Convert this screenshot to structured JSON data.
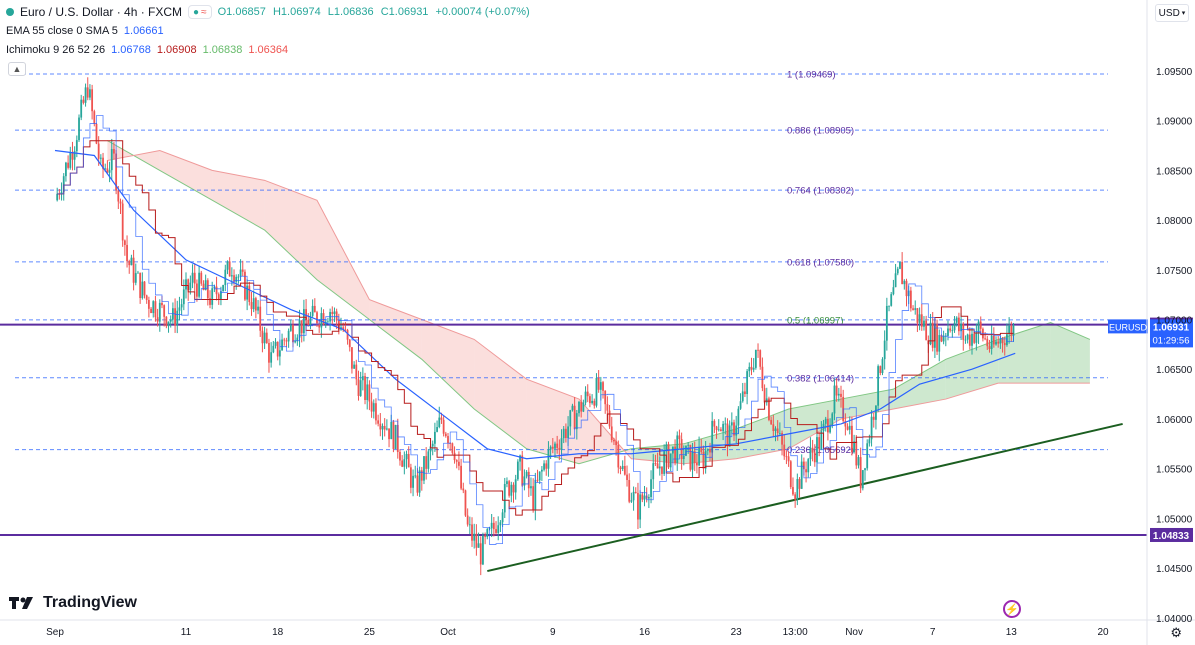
{
  "header": {
    "symbol": "Euro / U.S. Dollar · 4h · FXCM",
    "ohlc": {
      "o": "O1.06857",
      "h": "H1.06974",
      "l": "L1.06836",
      "c": "C1.06931",
      "change": "+0.00074 (+0.07%)"
    },
    "ema_label": "EMA 55 close 0 SMA 5",
    "ema_value": "1.06661",
    "ichimoku_label": "Ichimoku 9 26 52 26",
    "ichimoku_values": [
      "1.06768",
      "1.06908",
      "1.06838",
      "1.06364"
    ]
  },
  "currency_button": "USD",
  "brand": "TradingView",
  "chart_data": {
    "type": "candlestick",
    "title": "Euro / U.S. Dollar · 4h · FXCM",
    "ylim": [
      1.04,
      1.099
    ],
    "y_ticks": [
      {
        "value": 1.04,
        "label": "1.04000"
      },
      {
        "value": 1.045,
        "label": "1.04500"
      },
      {
        "value": 1.05,
        "label": "1.05000"
      },
      {
        "value": 1.055,
        "label": "1.05500"
      },
      {
        "value": 1.06,
        "label": "1.06000"
      },
      {
        "value": 1.065,
        "label": "1.06500"
      },
      {
        "value": 1.07,
        "label": "1.07000"
      },
      {
        "value": 1.075,
        "label": "1.07500"
      },
      {
        "value": 1.08,
        "label": "1.08000"
      },
      {
        "value": 1.085,
        "label": "1.08500"
      },
      {
        "value": 1.09,
        "label": "1.09000"
      },
      {
        "value": 1.095,
        "label": "1.09500"
      }
    ],
    "x_ticks": [
      {
        "label": "Sep",
        "day": 0
      },
      {
        "label": "11",
        "day": 10
      },
      {
        "label": "18",
        "day": 17
      },
      {
        "label": "25",
        "day": 24
      },
      {
        "label": "Oct",
        "day": 30
      },
      {
        "label": "9",
        "day": 38
      },
      {
        "label": "16",
        "day": 45
      },
      {
        "label": "23",
        "day": 52
      },
      {
        "label": "13:00",
        "day": 56.5
      },
      {
        "label": "Nov",
        "day": 61
      },
      {
        "label": "7",
        "day": 67
      },
      {
        "label": "13",
        "day": 73
      },
      {
        "label": "20",
        "day": 80
      }
    ],
    "fib_levels": [
      {
        "ratio": "1",
        "label": "1 (1.09469)",
        "value": 1.09469
      },
      {
        "ratio": "0.886",
        "label": "0.886 (1.08905)",
        "value": 1.08905
      },
      {
        "ratio": "0.764",
        "label": "0.764 (1.08302)",
        "value": 1.08302
      },
      {
        "ratio": "0.618",
        "label": "0.618 (1.07580)",
        "value": 1.0758
      },
      {
        "ratio": "0.5",
        "label": "0.5 (1.06997)",
        "value": 1.06997
      },
      {
        "ratio": "0.382",
        "label": "0.382 (1.06414)",
        "value": 1.06414
      },
      {
        "ratio": "0.236",
        "label": "0.236 (1.05692)",
        "value": 1.05692
      }
    ],
    "horizontal_lines": [
      {
        "value": 1.06949,
        "label": "1.06949",
        "color": "#5b2c9f"
      },
      {
        "value": 1.04833,
        "label": "1.04833",
        "color": "#5b2c9f"
      }
    ],
    "current_price": {
      "symbol": "EURUSD",
      "value": 1.06931,
      "label": "1.06931",
      "countdown": "01:29:56"
    },
    "trendline": {
      "start": {
        "day": 33,
        "value": 1.0447
      },
      "end": {
        "day": 81.5,
        "value": 1.0595
      },
      "color": "#1b5e20"
    },
    "price_path": [
      [
        0,
        1.082
      ],
      [
        1.5,
        1.088
      ],
      [
        2.5,
        1.0935
      ],
      [
        3.5,
        1.085
      ],
      [
        4.5,
        1.086
      ],
      [
        5.5,
        1.076
      ],
      [
        7,
        1.072
      ],
      [
        9,
        1.07
      ],
      [
        10.5,
        1.074
      ],
      [
        12,
        1.072
      ],
      [
        13.5,
        1.0755
      ],
      [
        15,
        1.072
      ],
      [
        16.5,
        1.066
      ],
      [
        18,
        1.069
      ],
      [
        19.5,
        1.07
      ],
      [
        21,
        1.071
      ],
      [
        22,
        1.069
      ],
      [
        23,
        1.064
      ],
      [
        24.5,
        1.061
      ],
      [
        26,
        1.058
      ],
      [
        27.5,
        1.053
      ],
      [
        28.5,
        1.056
      ],
      [
        29.5,
        1.06
      ],
      [
        30.5,
        1.057
      ],
      [
        31.5,
        1.049
      ],
      [
        32.5,
        1.0465
      ],
      [
        33.5,
        1.049
      ],
      [
        34.5,
        1.053
      ],
      [
        35.5,
        1.055
      ],
      [
        36.5,
        1.052
      ],
      [
        37.5,
        1.056
      ],
      [
        38.5,
        1.058
      ],
      [
        39.5,
        1.06
      ],
      [
        40.5,
        1.062
      ],
      [
        41.5,
        1.063
      ],
      [
        42.5,
        1.059
      ],
      [
        43.5,
        1.054
      ],
      [
        44.5,
        1.051
      ],
      [
        45.5,
        1.054
      ],
      [
        46.5,
        1.056
      ],
      [
        47.5,
        1.057
      ],
      [
        48.5,
        1.056
      ],
      [
        49.5,
        1.056
      ],
      [
        50.5,
        1.06
      ],
      [
        51.5,
        1.058
      ],
      [
        52.5,
        1.062
      ],
      [
        53.5,
        1.067
      ],
      [
        54.5,
        1.061
      ],
      [
        55.5,
        1.057
      ],
      [
        56.5,
        1.053
      ],
      [
        57.5,
        1.056
      ],
      [
        58.5,
        1.058
      ],
      [
        59.5,
        1.062
      ],
      [
        60.5,
        1.06
      ],
      [
        61.5,
        1.054
      ],
      [
        62.5,
        1.061
      ],
      [
        63.5,
        1.07
      ],
      [
        64.5,
        1.075
      ],
      [
        65.5,
        1.071
      ],
      [
        66.5,
        1.069
      ],
      [
        67.5,
        1.068
      ],
      [
        68.5,
        1.07
      ],
      [
        69.5,
        1.068
      ],
      [
        70.5,
        1.069
      ],
      [
        71.5,
        1.067
      ],
      [
        72.5,
        1.0685
      ],
      [
        73.3,
        1.0693
      ]
    ],
    "ema_path": [
      [
        0,
        1.087
      ],
      [
        3,
        1.0865
      ],
      [
        6,
        1.081
      ],
      [
        10,
        1.076
      ],
      [
        14,
        1.0735
      ],
      [
        18,
        1.071
      ],
      [
        22,
        1.069
      ],
      [
        26,
        1.064
      ],
      [
        30,
        1.06
      ],
      [
        33,
        1.057
      ],
      [
        36,
        1.056
      ],
      [
        40,
        1.0565
      ],
      [
        44,
        1.0565
      ],
      [
        48,
        1.057
      ],
      [
        52,
        1.0575
      ],
      [
        56,
        1.0585
      ],
      [
        60,
        1.0595
      ],
      [
        63,
        1.061
      ],
      [
        66,
        1.0635
      ],
      [
        70,
        1.065
      ],
      [
        73.3,
        1.0666
      ]
    ],
    "cloud_span_a": [
      [
        4,
        1.088
      ],
      [
        8,
        1.085
      ],
      [
        12,
        1.082
      ],
      [
        16,
        1.079
      ],
      [
        20,
        1.074
      ],
      [
        24,
        1.07
      ],
      [
        28,
        1.066
      ],
      [
        32,
        1.061
      ],
      [
        36,
        1.057
      ],
      [
        40,
        1.0555
      ],
      [
        44,
        1.057
      ],
      [
        48,
        1.0575
      ],
      [
        52,
        1.059
      ],
      [
        56,
        1.061
      ],
      [
        60,
        1.062
      ],
      [
        64,
        1.063
      ],
      [
        68,
        1.066
      ],
      [
        72,
        1.068
      ],
      [
        76,
        1.0697
      ],
      [
        79,
        1.068
      ]
    ],
    "cloud_span_b": [
      [
        4,
        1.086
      ],
      [
        8,
        1.087
      ],
      [
        12,
        1.085
      ],
      [
        16,
        1.084
      ],
      [
        20,
        1.082
      ],
      [
        24,
        1.072
      ],
      [
        28,
        1.07
      ],
      [
        32,
        1.068
      ],
      [
        36,
        1.064
      ],
      [
        40,
        1.062
      ],
      [
        44,
        1.056
      ],
      [
        48,
        1.0555
      ],
      [
        52,
        1.056
      ],
      [
        56,
        1.057
      ],
      [
        60,
        1.06
      ],
      [
        64,
        1.061
      ],
      [
        68,
        1.062
      ],
      [
        72,
        1.0636
      ],
      [
        76,
        1.0636
      ],
      [
        79,
        1.0636
      ]
    ],
    "colors": {
      "up": "#26a69a",
      "down": "#ef5350",
      "ema": "#2962ff",
      "kijun": "#b71c1c",
      "cloud_bull": "#a5d6a7",
      "cloud_bear": "#f8c4c1",
      "fib": "#2962ff"
    }
  }
}
